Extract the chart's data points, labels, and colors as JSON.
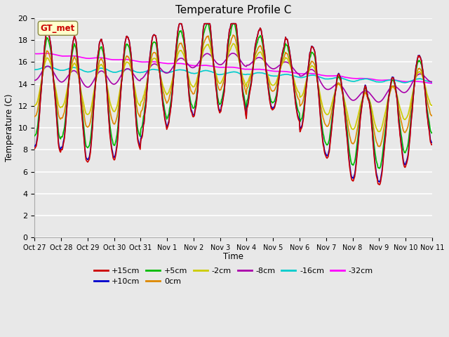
{
  "title": "Temperature Profile C",
  "xlabel": "Time",
  "ylabel": "Temperature (C)",
  "ylim": [
    0,
    20
  ],
  "yticks": [
    0,
    2,
    4,
    6,
    8,
    10,
    12,
    14,
    16,
    18,
    20
  ],
  "x_labels": [
    "Oct 27",
    "Oct 28",
    "Oct 29",
    "Oct 30",
    "Oct 31",
    "Nov 1",
    "Nov 2",
    "Nov 3",
    "Nov 4",
    "Nov 5",
    "Nov 6",
    "Nov 7",
    "Nov 8",
    "Nov 9",
    "Nov 10",
    "Nov 11"
  ],
  "series_colors": {
    "+15cm": "#cc0000",
    "+10cm": "#0000cc",
    "+5cm": "#00bb00",
    "0cm": "#dd8800",
    "-2cm": "#cccc00",
    "-8cm": "#aa00aa",
    "-16cm": "#00cccc",
    "-32cm": "#ff00ff"
  },
  "legend_label": "GT_met",
  "legend_box_facecolor": "#ffffcc",
  "legend_box_edgecolor": "#888844",
  "legend_text_color": "#cc0000",
  "plot_bg_color": "#e8e8e8",
  "grid_color": "#ffffff",
  "title_fontsize": 11
}
